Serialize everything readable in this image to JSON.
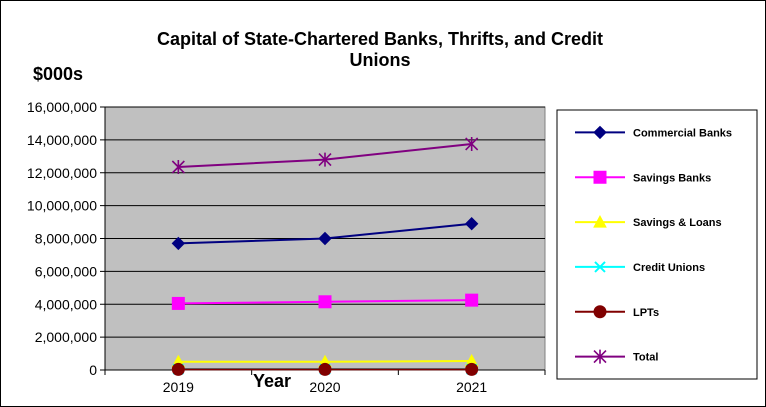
{
  "chart_data": {
    "type": "line",
    "title": "Capital of State-Chartered Banks, Thrifts, and Credit Unions",
    "title_lines": [
      "Capital of State-Chartered Banks, Thrifts, and Credit",
      "Unions"
    ],
    "ylabel": "$000s",
    "xlabel": "Year",
    "categories": [
      "2019",
      "2020",
      "2021"
    ],
    "ylim": [
      0,
      16000000
    ],
    "yticks": [
      0,
      2000000,
      4000000,
      6000000,
      8000000,
      10000000,
      12000000,
      14000000,
      16000000
    ],
    "ytick_labels": [
      "0",
      "2,000,000",
      "4,000,000",
      "6,000,000",
      "8,000,000",
      "10,000,000",
      "12,000,000",
      "14,000,000",
      "16,000,000"
    ],
    "grid": true,
    "plot_background": "#c0c0c0",
    "legend_position": "right",
    "series": [
      {
        "name": "Commercial Banks",
        "values": [
          7700000,
          8000000,
          8900000
        ],
        "color": "#000080",
        "marker": "diamond"
      },
      {
        "name": "Savings Banks",
        "values": [
          4050000,
          4150000,
          4250000
        ],
        "color": "#ff00ff",
        "marker": "square"
      },
      {
        "name": "Savings & Loans",
        "values": [
          500000,
          500000,
          550000
        ],
        "color": "#ffff00",
        "marker": "triangle"
      },
      {
        "name": "Credit Unions",
        "values": [
          50000,
          50000,
          50000
        ],
        "color": "#00ffff",
        "marker": "x"
      },
      {
        "name": "LPTs",
        "values": [
          40000,
          40000,
          40000
        ],
        "color": "#800000",
        "marker": "circle"
      },
      {
        "name": "Total",
        "values": [
          12350000,
          12800000,
          13750000
        ],
        "color": "#800080",
        "marker": "star"
      }
    ]
  }
}
